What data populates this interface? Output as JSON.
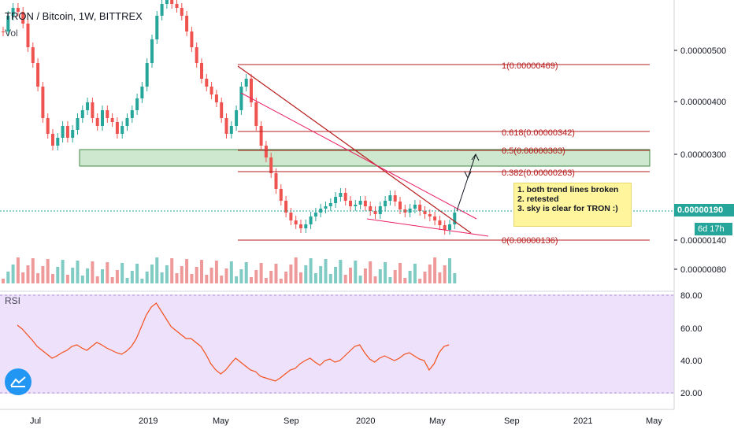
{
  "header": {
    "title": "TRON / Bitcoin, 1W, BITTREX",
    "vol_label": "Vol"
  },
  "price_axis": {
    "ticks": [
      "0.00000500",
      "0.00000400",
      "0.00000300",
      "0.00000140",
      "0.00000080"
    ],
    "last_price": "0.00000190",
    "countdown": "6d 17h"
  },
  "rsi": {
    "label": "RSI",
    "ticks": [
      "80.00",
      "60.00",
      "40.00",
      "20.00"
    ],
    "panel_color": "#ede1fb",
    "line_color": "#f4511e"
  },
  "time_axis": {
    "ticks": [
      "Jul",
      "2019",
      "May",
      "Sep",
      "2020",
      "May",
      "Sep",
      "2021",
      "May"
    ]
  },
  "fib_levels": [
    {
      "label": "1(0.00000469)",
      "ratio": 1
    },
    {
      "label": "0.618(0.00000342)",
      "ratio": 0.618
    },
    {
      "label": "0.5(0.00000303)",
      "ratio": 0.5
    },
    {
      "label": "0.382(0.00000263)",
      "ratio": 0.382
    },
    {
      "label": "0(0.00000136)",
      "ratio": 0
    }
  ],
  "annotation": {
    "lines": [
      "1. both trend lines broken",
      "2. retested",
      "3. sky is clear for TRON :)"
    ]
  },
  "colors": {
    "up": "#26a69a",
    "down": "#ef5350",
    "fib": "#b71c1c",
    "zone": "#c8e6c9"
  }
}
